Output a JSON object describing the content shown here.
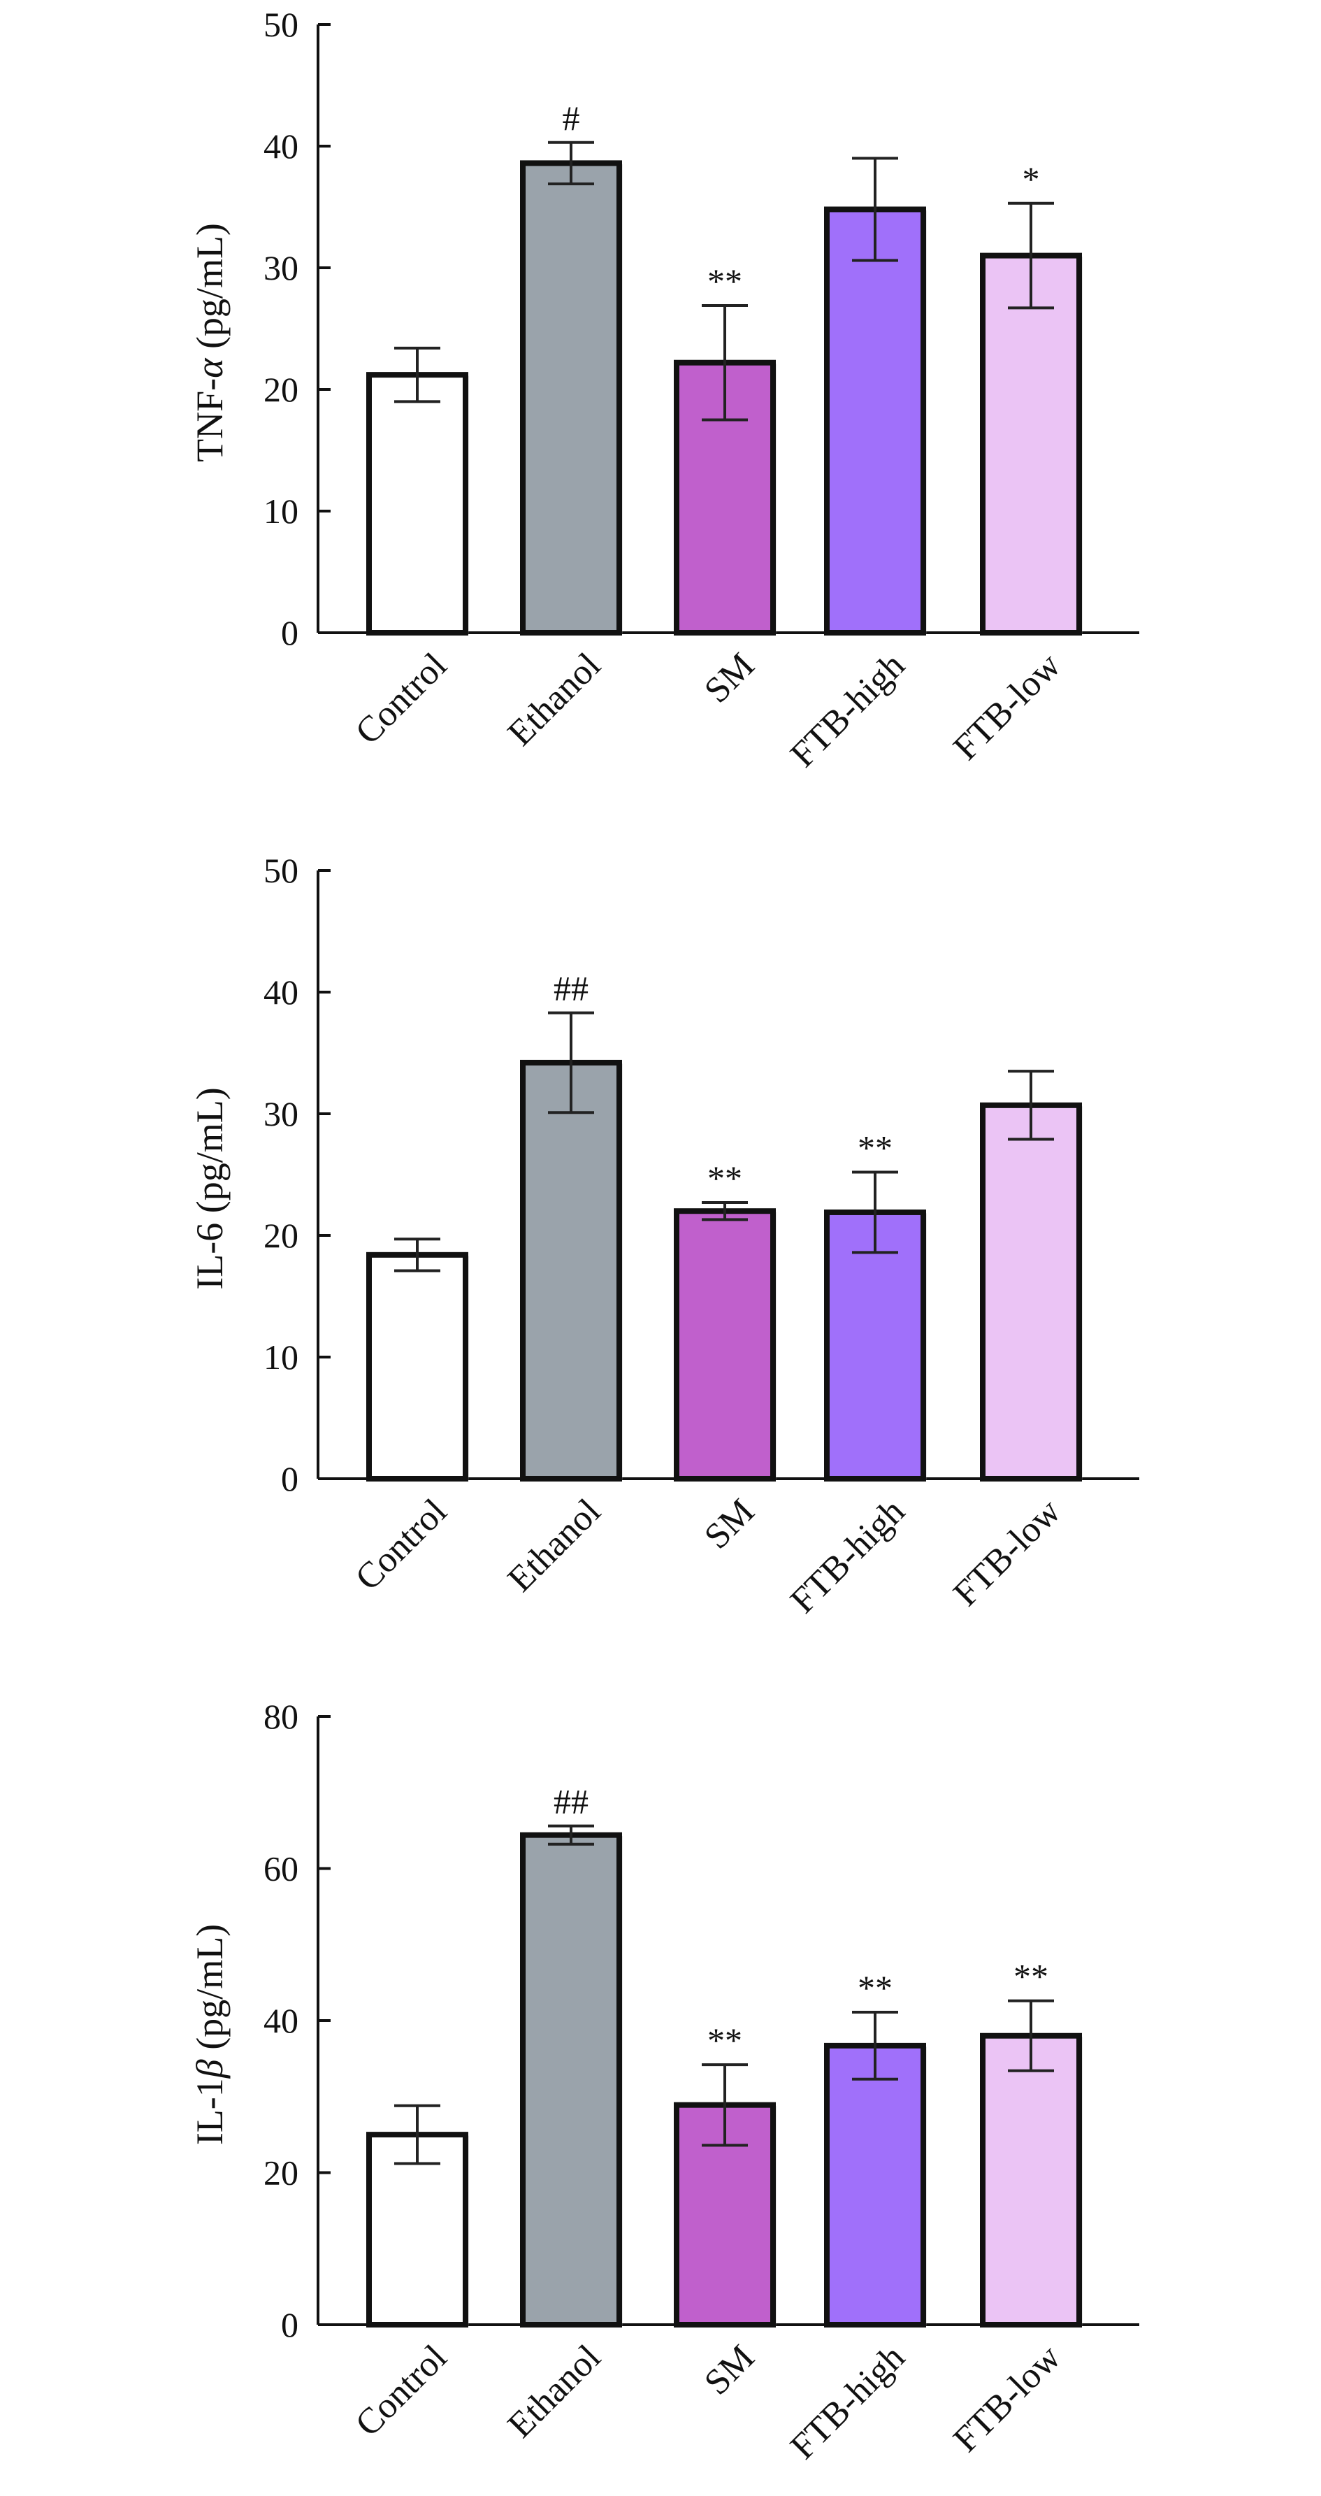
{
  "chart_data": [
    {
      "type": "bar",
      "categories": [
        "Control",
        "Ethanol",
        "SM",
        "FTB-high",
        "FTB-low"
      ],
      "ylabel": "TNF-α (pg/mL)",
      "ylabel_main": "TNF-",
      "ylabel_symbol": "α",
      "ylabel_unit": " (pg/mL)",
      "ylim": [
        0,
        50
      ],
      "yticks": [
        0,
        10,
        20,
        30,
        40,
        50
      ],
      "values": [
        21.2,
        38.6,
        22.2,
        34.8,
        31.0
      ],
      "errors": [
        2.2,
        1.7,
        4.7,
        4.2,
        4.3
      ],
      "annotations": [
        "",
        "#",
        "**",
        "",
        "*"
      ],
      "colors": [
        "#ffffff",
        "#9aa3ab",
        "#c060cc",
        "#a070fa",
        "#ebc4f5"
      ]
    },
    {
      "type": "bar",
      "categories": [
        "Control",
        "Ethanol",
        "SM",
        "FTB-high",
        "FTB-low"
      ],
      "ylabel": "IL-6 (pg/mL)",
      "ylabel_main": "IL-6",
      "ylabel_symbol": "",
      "ylabel_unit": " (pg/mL)",
      "ylim": [
        0,
        50
      ],
      "yticks": [
        0,
        10,
        20,
        30,
        40,
        50
      ],
      "values": [
        18.4,
        34.2,
        22.0,
        21.9,
        30.7
      ],
      "errors": [
        1.3,
        4.1,
        0.7,
        3.3,
        2.8
      ],
      "annotations": [
        "",
        "##",
        "**",
        "**",
        ""
      ],
      "colors": [
        "#ffffff",
        "#9aa3ab",
        "#c060cc",
        "#a070fa",
        "#ebc4f5"
      ]
    },
    {
      "type": "bar",
      "categories": [
        "Control",
        "Ethanol",
        "SM",
        "FTB-high",
        "FTB-low"
      ],
      "ylabel": "IL-1β (pg/mL)",
      "ylabel_main": "IL-1",
      "ylabel_symbol": "β",
      "ylabel_unit": " (pg/mL)",
      "ylim": [
        0,
        80
      ],
      "yticks": [
        0,
        20,
        40,
        60,
        80
      ],
      "values": [
        25.0,
        64.4,
        28.9,
        36.7,
        38.0
      ],
      "errors": [
        3.8,
        1.2,
        5.3,
        4.4,
        4.6
      ],
      "annotations": [
        "",
        "##",
        "**",
        "**",
        "**"
      ],
      "colors": [
        "#ffffff",
        "#9aa3ab",
        "#c060cc",
        "#a070fa",
        "#ebc4f5"
      ]
    }
  ]
}
